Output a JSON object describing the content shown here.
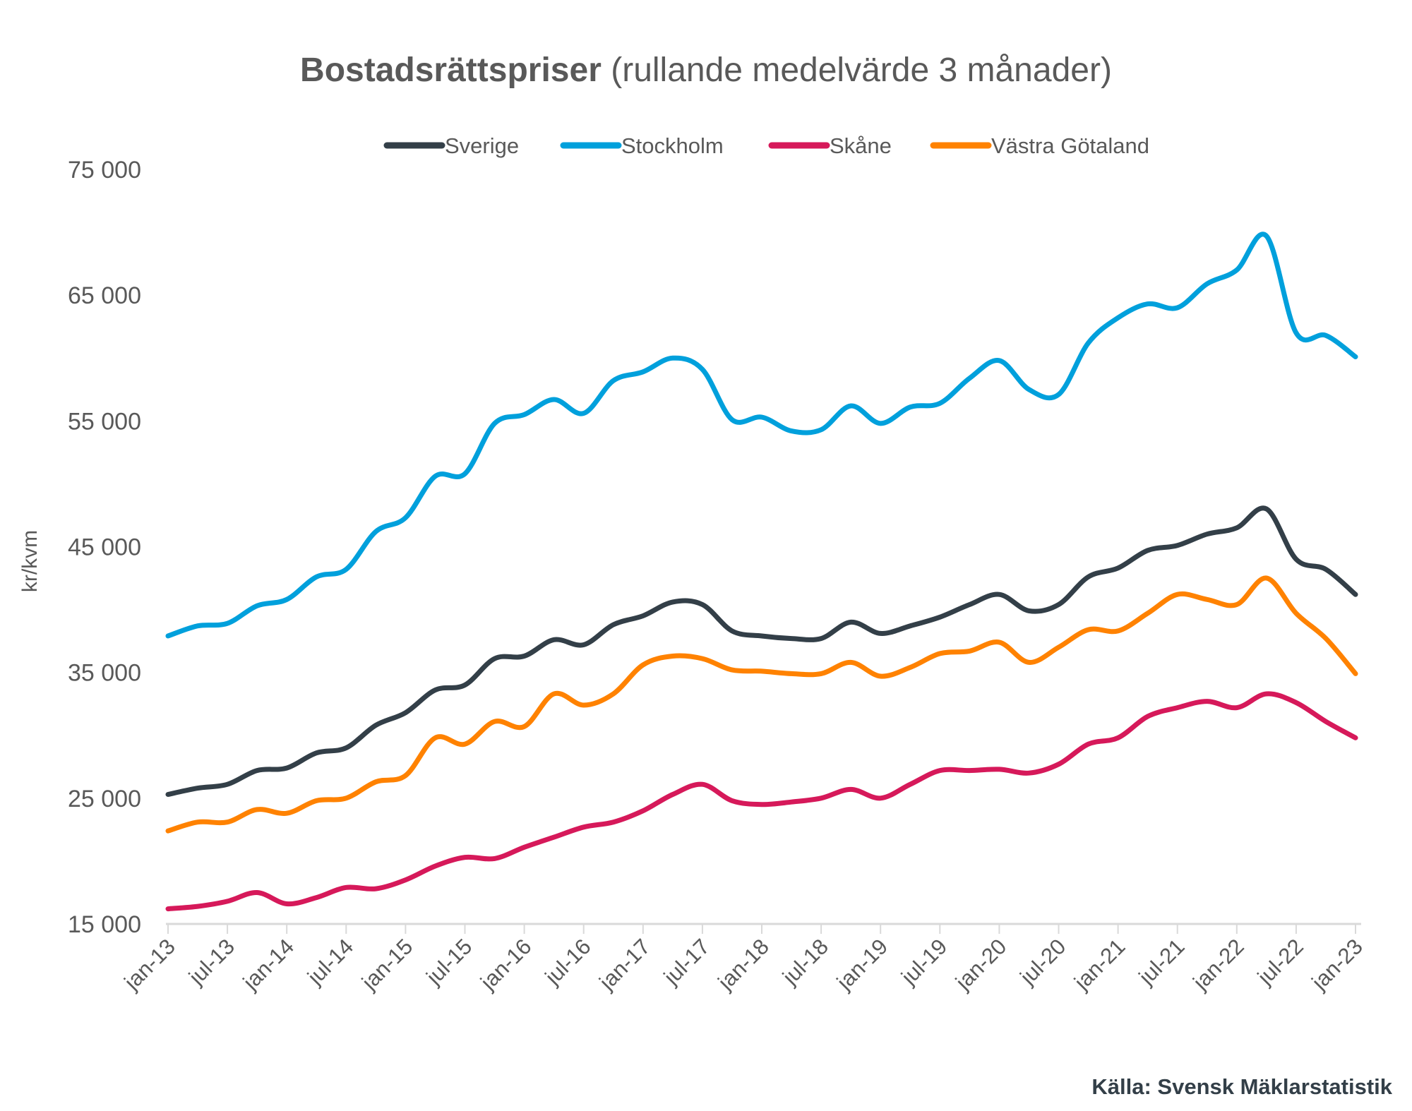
{
  "chart_data": {
    "type": "line",
    "title": "Bostadsrättspriser",
    "subtitle": "(rullande medelvärde 3 månader)",
    "xlabel": "",
    "ylabel": "kr/kvm",
    "ylim": [
      15000,
      75000
    ],
    "yticks": [
      15000,
      25000,
      35000,
      45000,
      55000,
      65000,
      75000
    ],
    "ytick_labels": [
      "15 000",
      "25 000",
      "35 000",
      "45 000",
      "55 000",
      "65 000",
      "75 000"
    ],
    "xtick_labels": [
      "jan-13",
      "jul-13",
      "jan-14",
      "jul-14",
      "jan-15",
      "jul-15",
      "jan-16",
      "jul-16",
      "jan-17",
      "jul-17",
      "jan-18",
      "jul-18",
      "jan-19",
      "jul-19",
      "jan-20",
      "jul-20",
      "jan-21",
      "jul-21",
      "jan-22",
      "jul-22",
      "jan-23"
    ],
    "x_months_from_jan13": [
      0,
      3,
      6,
      9,
      12,
      15,
      18,
      21,
      24,
      27,
      30,
      33,
      36,
      39,
      42,
      45,
      48,
      51,
      54,
      57,
      60,
      63,
      66,
      69,
      72,
      75,
      78,
      81,
      84,
      87,
      90,
      93,
      96,
      99,
      102,
      105,
      108,
      111,
      114,
      117,
      120
    ],
    "x_range_months": [
      0,
      120
    ],
    "grid": false,
    "legend_position": "top",
    "series": [
      {
        "name": "Sverige",
        "color": "#333f48",
        "values": [
          25300,
          25800,
          26100,
          27200,
          27400,
          28600,
          29000,
          30800,
          31800,
          33600,
          34000,
          36100,
          36300,
          37600,
          37200,
          38800,
          39500,
          40600,
          40400,
          38300,
          37900,
          37700,
          37700,
          39000,
          38100,
          38700,
          39400,
          40400,
          41200,
          39900,
          40400,
          42600,
          43300,
          44700,
          45100,
          46000,
          46500,
          48000,
          44000,
          43200,
          41200
        ]
      },
      {
        "name": "Stockholm",
        "color": "#00a0dc",
        "values": [
          37900,
          38700,
          38900,
          40300,
          40800,
          42600,
          43200,
          46200,
          47300,
          50600,
          50800,
          54800,
          55500,
          56700,
          55600,
          58200,
          58900,
          60000,
          59100,
          55100,
          55300,
          54200,
          54300,
          56200,
          54800,
          56100,
          56400,
          58400,
          59800,
          57500,
          57100,
          61200,
          63200,
          64300,
          64000,
          65900,
          67000,
          69700,
          62000,
          61800,
          60100
        ]
      },
      {
        "name": "Skåne",
        "color": "#d6195a",
        "values": [
          16200,
          16400,
          16800,
          17500,
          16600,
          17100,
          17900,
          17800,
          18500,
          19600,
          20300,
          20200,
          21100,
          21900,
          22700,
          23100,
          24000,
          25300,
          26100,
          24800,
          24500,
          24700,
          25000,
          25700,
          25000,
          26100,
          27200,
          27200,
          27300,
          27000,
          27700,
          29300,
          29800,
          31500,
          32200,
          32700,
          32200,
          33300,
          32600,
          31100,
          29800
        ]
      },
      {
        "name": "Västra Götaland",
        "color": "#ff8200",
        "values": [
          22400,
          23100,
          23100,
          24100,
          23800,
          24800,
          25000,
          26300,
          26800,
          29800,
          29300,
          31100,
          30700,
          33300,
          32400,
          33300,
          35600,
          36300,
          36100,
          35200,
          35100,
          34900,
          34900,
          35800,
          34700,
          35400,
          36500,
          36700,
          37400,
          35800,
          37000,
          38400,
          38300,
          39700,
          41200,
          40800,
          40400,
          42500,
          39700,
          37700,
          34900
        ]
      }
    ]
  },
  "source": "Källa: Svensk Mäklarstatistik"
}
